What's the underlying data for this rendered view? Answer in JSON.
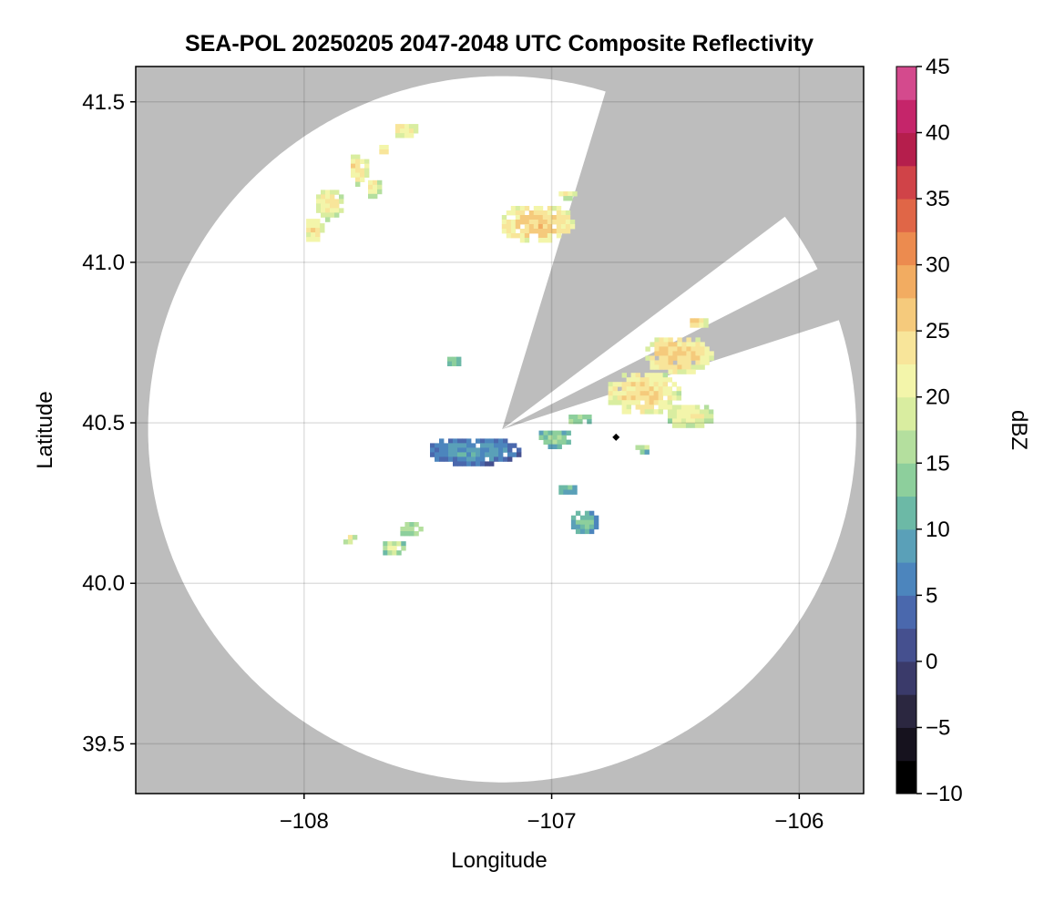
{
  "chart_data": {
    "type": "heatmap",
    "title": "SEA-POL 20250205 2047-2048 UTC Composite Reflectivity",
    "xlabel": "Longitude",
    "ylabel": "Latitude",
    "xlim": [
      -108.68,
      -105.74
    ],
    "ylim": [
      39.345,
      41.61
    ],
    "xticks": [
      -108,
      -107,
      -106
    ],
    "xtick_labels": [
      "−108",
      "−107",
      "−106"
    ],
    "yticks": [
      39.5,
      40.0,
      40.5,
      41.0,
      41.5
    ],
    "ytick_labels": [
      "39.5",
      "40.0",
      "40.5",
      "41.0",
      "41.5"
    ],
    "grid": true,
    "background_color": "#bdbdbd",
    "radar": {
      "center_lon": -107.2,
      "center_lat": 40.48,
      "range_lon": 1.43,
      "range_lat": 1.1,
      "blocked_sectors_deg_cw_from_north": [
        [
          17,
          53
        ],
        [
          63,
          72
        ]
      ],
      "site_marker": {
        "lon": -106.74,
        "lat": 40.455
      }
    },
    "colorbar": {
      "label": "dBZ",
      "min": -10,
      "max": 45,
      "step": 2.5,
      "ticks": [
        -10,
        -5,
        0,
        5,
        10,
        15,
        20,
        25,
        30,
        35,
        40,
        45
      ],
      "tick_labels": [
        "−10",
        "−5",
        "0",
        "5",
        "10",
        "15",
        "20",
        "25",
        "30",
        "35",
        "40",
        "45"
      ],
      "colormap": "spectral_r",
      "colors": [
        "#000000",
        "#16121e",
        "#2b2740",
        "#3a3a6a",
        "#45508f",
        "#4a68ad",
        "#4c85bd",
        "#5aa0b8",
        "#6cb9a6",
        "#8dcf9c",
        "#b4df9e",
        "#d9eda0",
        "#f3f5aa",
        "#f8e59a",
        "#f5ca7c",
        "#f2ac61",
        "#ec8b4f",
        "#e06647",
        "#d04348",
        "#b51e4c",
        "#c5256a",
        "#d44a8d",
        "#e674ad",
        "#ea9cc6",
        "#c28ac7",
        "#9b69b4",
        "#7a4a9c",
        "#5a2b7c",
        "#3d0f56"
      ]
    },
    "echo_cells": [
      {
        "lon": -107.91,
        "lat": 41.19,
        "rlon": 0.06,
        "rlat": 0.05,
        "dbz": 22
      },
      {
        "lon": -107.97,
        "lat": 41.11,
        "rlon": 0.04,
        "rlat": 0.04,
        "dbz": 23
      },
      {
        "lon": -107.79,
        "lat": 41.3,
        "rlon": 0.04,
        "rlat": 0.05,
        "dbz": 24
      },
      {
        "lon": -107.73,
        "lat": 41.24,
        "rlon": 0.03,
        "rlat": 0.03,
        "dbz": 22
      },
      {
        "lon": -107.6,
        "lat": 41.42,
        "rlon": 0.05,
        "rlat": 0.025,
        "dbz": 23
      },
      {
        "lon": -107.69,
        "lat": 41.36,
        "rlon": 0.025,
        "rlat": 0.02,
        "dbz": 22
      },
      {
        "lon": -107.07,
        "lat": 41.13,
        "rlon": 0.15,
        "rlat": 0.06,
        "dbz": 25
      },
      {
        "lon": -106.95,
        "lat": 41.22,
        "rlon": 0.04,
        "rlat": 0.015,
        "dbz": 21
      },
      {
        "lon": -107.4,
        "lat": 40.7,
        "rlon": 0.04,
        "rlat": 0.02,
        "dbz": 14
      },
      {
        "lon": -107.32,
        "lat": 40.42,
        "rlon": 0.19,
        "rlat": 0.045,
        "dbz": 8
      },
      {
        "lon": -107.0,
        "lat": 40.46,
        "rlon": 0.07,
        "rlat": 0.03,
        "dbz": 14
      },
      {
        "lon": -106.9,
        "lat": 40.52,
        "rlon": 0.05,
        "rlat": 0.02,
        "dbz": 15
      },
      {
        "lon": -106.64,
        "lat": 40.6,
        "rlon": 0.15,
        "rlat": 0.07,
        "dbz": 24
      },
      {
        "lon": -106.5,
        "lat": 40.72,
        "rlon": 0.14,
        "rlat": 0.06,
        "dbz": 25
      },
      {
        "lon": -106.45,
        "lat": 40.53,
        "rlon": 0.1,
        "rlat": 0.04,
        "dbz": 21
      },
      {
        "lon": -106.42,
        "lat": 40.82,
        "rlon": 0.04,
        "rlat": 0.02,
        "dbz": 24
      },
      {
        "lon": -106.64,
        "lat": 40.43,
        "rlon": 0.04,
        "rlat": 0.015,
        "dbz": 16
      },
      {
        "lon": -106.88,
        "lat": 40.2,
        "rlon": 0.06,
        "rlat": 0.04,
        "dbz": 12
      },
      {
        "lon": -106.95,
        "lat": 40.3,
        "rlon": 0.04,
        "rlat": 0.02,
        "dbz": 11
      },
      {
        "lon": -107.58,
        "lat": 40.18,
        "rlon": 0.05,
        "rlat": 0.025,
        "dbz": 17
      },
      {
        "lon": -107.65,
        "lat": 40.12,
        "rlon": 0.05,
        "rlat": 0.025,
        "dbz": 18
      },
      {
        "lon": -107.83,
        "lat": 40.15,
        "rlon": 0.03,
        "rlat": 0.015,
        "dbz": 22
      }
    ]
  }
}
